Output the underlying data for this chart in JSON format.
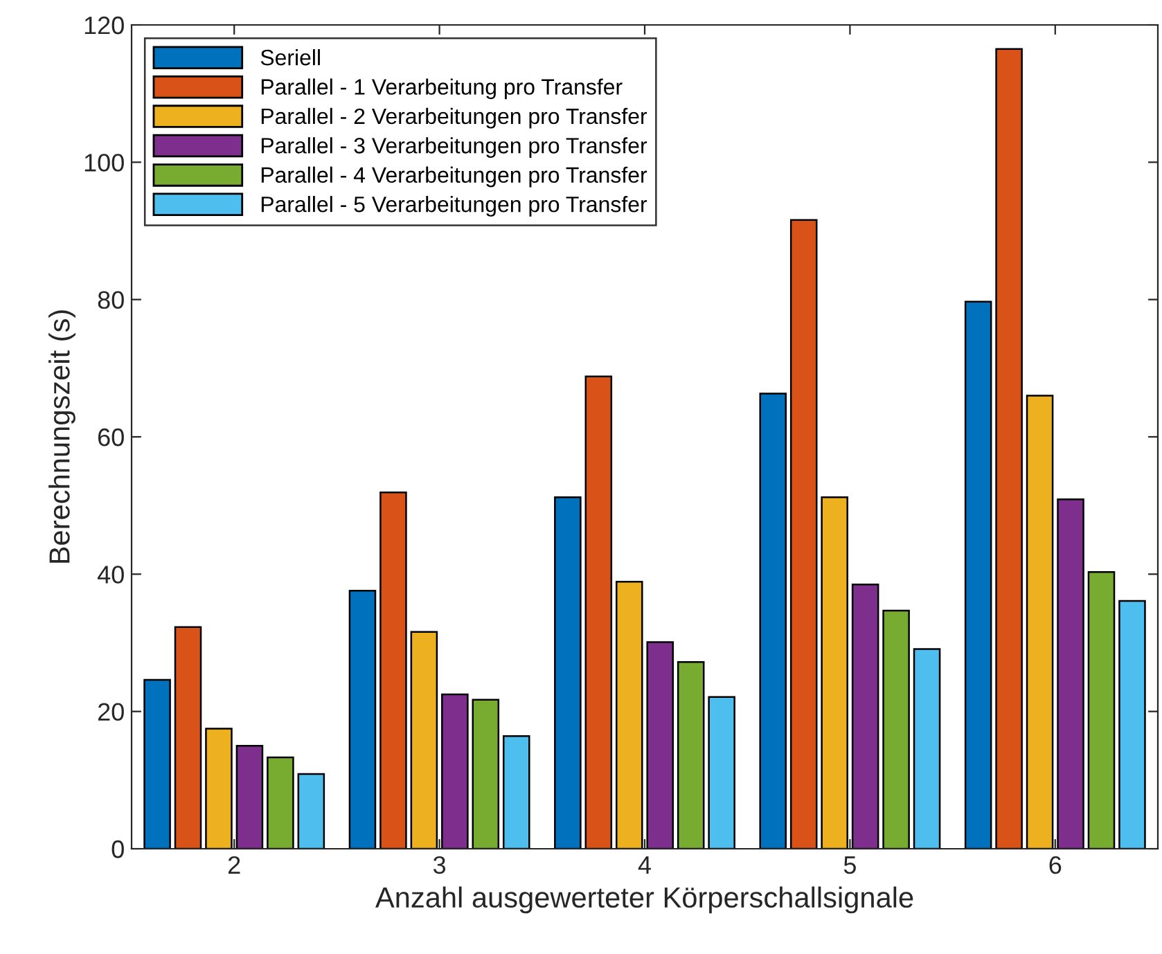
{
  "chart_data": {
    "type": "bar",
    "xlabel": "Anzahl ausgewerteter Körperschallsignale",
    "ylabel": "Berechnungszeit (s)",
    "categories": [
      "2",
      "3",
      "4",
      "5",
      "6"
    ],
    "series": [
      {
        "name": "Seriell",
        "color": "#0072bd",
        "values": [
          24.6,
          37.6,
          51.2,
          66.3,
          79.7
        ]
      },
      {
        "name": "Parallel - 1 Verarbeitung pro Transfer",
        "color": "#d95319",
        "values": [
          32.3,
          51.9,
          68.8,
          91.6,
          116.5
        ]
      },
      {
        "name": "Parallel - 2 Verarbeitungen pro Transfer",
        "color": "#edb120",
        "values": [
          17.5,
          31.6,
          38.9,
          51.2,
          66.0
        ]
      },
      {
        "name": "Parallel - 3 Verarbeitungen pro Transfer",
        "color": "#7e2f8e",
        "values": [
          15.0,
          22.5,
          30.1,
          38.5,
          50.9
        ]
      },
      {
        "name": "Parallel - 4 Verarbeitungen pro Transfer",
        "color": "#77ac30",
        "values": [
          13.3,
          21.7,
          27.2,
          34.7,
          40.3
        ]
      },
      {
        "name": "Parallel - 5 Verarbeitungen pro Transfer",
        "color": "#4dbeee",
        "values": [
          10.9,
          16.4,
          22.1,
          29.1,
          36.1
        ]
      }
    ],
    "ylim": [
      0,
      120
    ],
    "yticks": [
      0,
      20,
      40,
      60,
      80,
      100,
      120
    ],
    "grid": false,
    "legend": "top left"
  }
}
